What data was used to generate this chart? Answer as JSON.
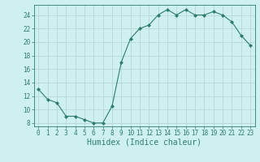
{
  "x": [
    0,
    1,
    2,
    3,
    4,
    5,
    6,
    7,
    8,
    9,
    10,
    11,
    12,
    13,
    14,
    15,
    16,
    17,
    18,
    19,
    20,
    21,
    22,
    23
  ],
  "y": [
    13,
    11.5,
    11,
    9,
    9,
    8.5,
    8,
    8,
    10.5,
    17,
    20.5,
    22,
    22.5,
    24,
    24.8,
    24,
    24.8,
    24,
    24,
    24.5,
    24,
    23,
    21,
    19.5
  ],
  "line_color": "#2e7d6b",
  "marker": "D",
  "marker_size": 2.0,
  "bg_color": "#cff0f0",
  "grid_color": "#b8d8d8",
  "xlabel": "Humidex (Indice chaleur)",
  "xlabel_fontsize": 7,
  "ytick_values": [
    8,
    10,
    12,
    14,
    16,
    18,
    20,
    22,
    24
  ],
  "xtick_labels": [
    "0",
    "1",
    "2",
    "3",
    "4",
    "5",
    "6",
    "7",
    "8",
    "9",
    "10",
    "11",
    "12",
    "13",
    "14",
    "15",
    "16",
    "17",
    "18",
    "19",
    "20",
    "21",
    "22",
    "23"
  ],
  "ylim": [
    7.5,
    25.5
  ],
  "xlim": [
    -0.5,
    23.5
  ],
  "tick_color": "#2e7d6b",
  "tick_fontsize": 5.5
}
